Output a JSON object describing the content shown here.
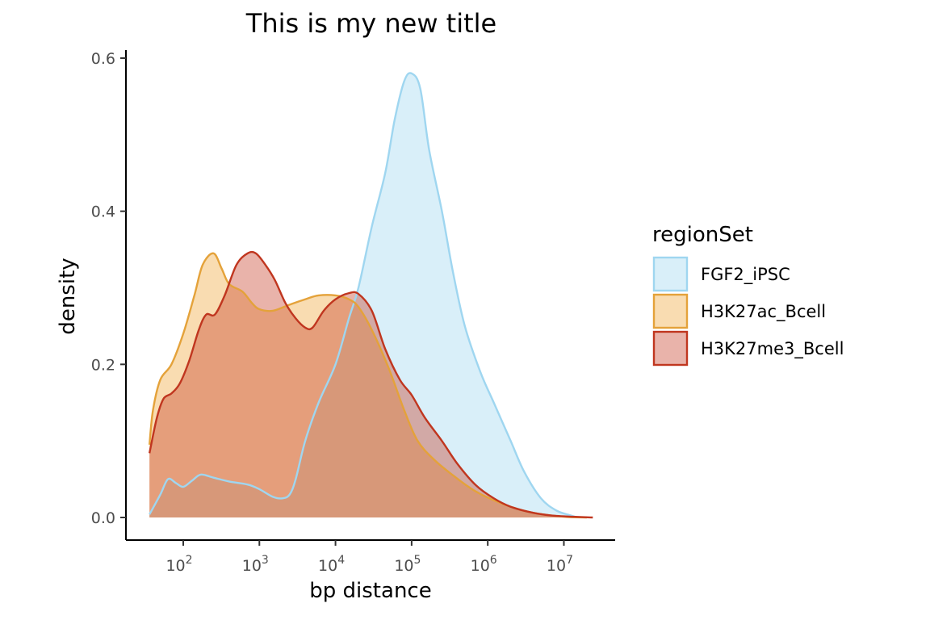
{
  "chart_data": {
    "type": "area",
    "title": "This is my new title",
    "xlabel": "bp distance",
    "ylabel": "density",
    "x_scale": "log10",
    "xlim": [
      35,
      25000000
    ],
    "ylim": [
      0,
      0.6
    ],
    "y_ticks": [
      0.0,
      0.2,
      0.4,
      0.6
    ],
    "y_tick_labels": [
      "0.0",
      "0.2",
      "0.4",
      "0.6"
    ],
    "x_ticks": [
      100,
      1000,
      10000,
      100000,
      1000000,
      10000000
    ],
    "x_tick_labels": [
      {
        "base": "10",
        "exp": "2"
      },
      {
        "base": "10",
        "exp": "3"
      },
      {
        "base": "10",
        "exp": "4"
      },
      {
        "base": "10",
        "exp": "5"
      },
      {
        "base": "10",
        "exp": "6"
      },
      {
        "base": "10",
        "exp": "7"
      }
    ],
    "grid": false,
    "legend": {
      "title": "regionSet",
      "position": "right"
    },
    "series": [
      {
        "name": "FGF2_iPSC",
        "fill": "#9fd6f0",
        "stroke": "#9fd6f0",
        "fill_opacity": 0.4,
        "points": [
          [
            36,
            0.004
          ],
          [
            50,
            0.03
          ],
          [
            63,
            0.05
          ],
          [
            80,
            0.045
          ],
          [
            100,
            0.04
          ],
          [
            130,
            0.048
          ],
          [
            170,
            0.056
          ],
          [
            250,
            0.052
          ],
          [
            400,
            0.047
          ],
          [
            700,
            0.043
          ],
          [
            1000,
            0.037
          ],
          [
            1500,
            0.027
          ],
          [
            2000,
            0.025
          ],
          [
            2500,
            0.03
          ],
          [
            3000,
            0.05
          ],
          [
            4000,
            0.1
          ],
          [
            6000,
            0.15
          ],
          [
            10000,
            0.2
          ],
          [
            15000,
            0.26
          ],
          [
            20000,
            0.3
          ],
          [
            30000,
            0.38
          ],
          [
            45000,
            0.45
          ],
          [
            60000,
            0.52
          ],
          [
            80000,
            0.57
          ],
          [
            100000,
            0.58
          ],
          [
            130000,
            0.56
          ],
          [
            170000,
            0.48
          ],
          [
            250000,
            0.4
          ],
          [
            350000,
            0.32
          ],
          [
            500000,
            0.25
          ],
          [
            800000,
            0.19
          ],
          [
            1200000,
            0.15
          ],
          [
            2000000,
            0.1
          ],
          [
            3000000,
            0.06
          ],
          [
            5000000,
            0.025
          ],
          [
            8000000,
            0.009
          ],
          [
            12000000,
            0.003
          ],
          [
            15000000,
            0.0
          ]
        ]
      },
      {
        "name": "H3K27ac_Bcell",
        "fill": "#f0a83c",
        "stroke": "#e4a23a",
        "fill_opacity": 0.4,
        "points": [
          [
            36,
            0.095
          ],
          [
            40,
            0.14
          ],
          [
            50,
            0.18
          ],
          [
            70,
            0.2
          ],
          [
            100,
            0.24
          ],
          [
            140,
            0.29
          ],
          [
            180,
            0.33
          ],
          [
            250,
            0.345
          ],
          [
            320,
            0.325
          ],
          [
            400,
            0.305
          ],
          [
            600,
            0.295
          ],
          [
            800,
            0.28
          ],
          [
            1000,
            0.272
          ],
          [
            1500,
            0.27
          ],
          [
            2500,
            0.278
          ],
          [
            4000,
            0.285
          ],
          [
            6000,
            0.29
          ],
          [
            10000,
            0.29
          ],
          [
            15000,
            0.285
          ],
          [
            20000,
            0.275
          ],
          [
            30000,
            0.245
          ],
          [
            50000,
            0.195
          ],
          [
            80000,
            0.14
          ],
          [
            120000,
            0.1
          ],
          [
            200000,
            0.075
          ],
          [
            350000,
            0.055
          ],
          [
            600000,
            0.038
          ],
          [
            1000000,
            0.026
          ],
          [
            2000000,
            0.014
          ],
          [
            4000000,
            0.006
          ],
          [
            10000000,
            0.001
          ],
          [
            20000000,
            0.0
          ]
        ]
      },
      {
        "name": "H3K27me3_Bcell",
        "fill": "#c8402a",
        "stroke": "#c0361f",
        "fill_opacity": 0.4,
        "points": [
          [
            36,
            0.084
          ],
          [
            45,
            0.13
          ],
          [
            55,
            0.155
          ],
          [
            70,
            0.162
          ],
          [
            90,
            0.175
          ],
          [
            120,
            0.205
          ],
          [
            160,
            0.245
          ],
          [
            200,
            0.265
          ],
          [
            260,
            0.265
          ],
          [
            350,
            0.29
          ],
          [
            500,
            0.33
          ],
          [
            700,
            0.345
          ],
          [
            900,
            0.345
          ],
          [
            1200,
            0.33
          ],
          [
            1600,
            0.31
          ],
          [
            2200,
            0.28
          ],
          [
            3000,
            0.26
          ],
          [
            4000,
            0.248
          ],
          [
            5000,
            0.248
          ],
          [
            7000,
            0.27
          ],
          [
            10000,
            0.285
          ],
          [
            15000,
            0.293
          ],
          [
            20000,
            0.292
          ],
          [
            30000,
            0.27
          ],
          [
            45000,
            0.22
          ],
          [
            70000,
            0.18
          ],
          [
            100000,
            0.16
          ],
          [
            150000,
            0.13
          ],
          [
            250000,
            0.1
          ],
          [
            400000,
            0.07
          ],
          [
            700000,
            0.042
          ],
          [
            1200000,
            0.025
          ],
          [
            2000000,
            0.014
          ],
          [
            4000000,
            0.006
          ],
          [
            8000000,
            0.002
          ],
          [
            24000000,
            0.0
          ]
        ]
      }
    ]
  }
}
